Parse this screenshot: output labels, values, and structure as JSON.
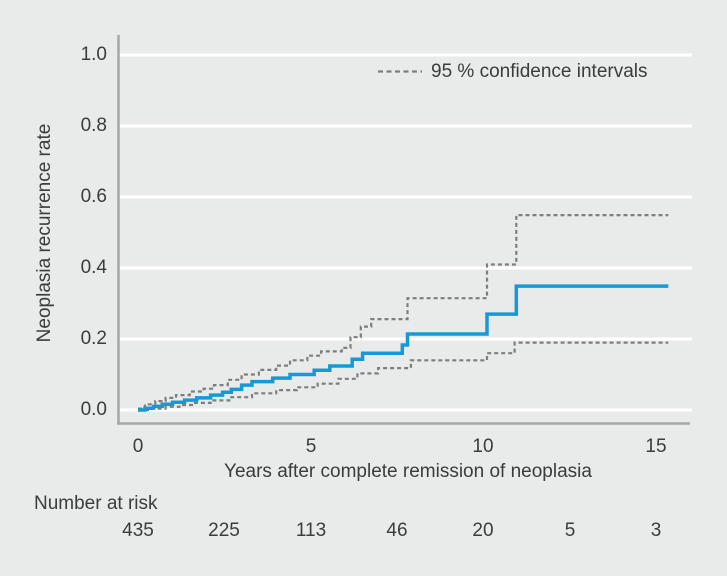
{
  "figure": {
    "background": "#e9eaea",
    "text_color": "#3b3c3d",
    "gridline_color": "#ffffff",
    "axis_color": "#a6a7a7"
  },
  "chart_data": {
    "type": "line",
    "subtype": "step",
    "title": "",
    "xlabel": "Years after complete remission of neoplasia",
    "ylabel": "Neoplasia recurrence rate",
    "xlim": [
      -0.55,
      16.05
    ],
    "ylim": [
      0,
      1.0
    ],
    "grid": "horizontal-white-lines",
    "xtick_labels": [
      "0",
      "5",
      "10",
      "15"
    ],
    "xtick_years": [
      0,
      5,
      10,
      15
    ],
    "ytick_labels": [
      "1.0",
      "0.8",
      "0.6",
      "0.4",
      "0.2",
      "0.0"
    ],
    "ytick_values": [
      1.0,
      0.8,
      0.6,
      0.4,
      0.2,
      0.0
    ],
    "legend": {
      "label": "95 % confidence intervals",
      "position": "top-right",
      "line_style": "dashed",
      "line_color": "#7d7e7e"
    },
    "series": [
      {
        "name": "ci-upper",
        "color": "#7d7e7e",
        "style": "dashed",
        "width": 2.2,
        "end_year": 15.35,
        "steps": [
          [
            0,
            0.004
          ],
          [
            0.2,
            0.016
          ],
          [
            0.5,
            0.025
          ],
          [
            0.8,
            0.034
          ],
          [
            1.1,
            0.042
          ],
          [
            1.5,
            0.052
          ],
          [
            1.9,
            0.06
          ],
          [
            2.2,
            0.07
          ],
          [
            2.6,
            0.085
          ],
          [
            3.0,
            0.1
          ],
          [
            3.5,
            0.113
          ],
          [
            4.0,
            0.125
          ],
          [
            4.4,
            0.14
          ],
          [
            4.9,
            0.153
          ],
          [
            5.3,
            0.165
          ],
          [
            5.9,
            0.175
          ],
          [
            6.15,
            0.205
          ],
          [
            6.45,
            0.235
          ],
          [
            6.75,
            0.256
          ],
          [
            7.8,
            0.315
          ],
          [
            10.1,
            0.41
          ],
          [
            10.95,
            0.549
          ]
        ]
      },
      {
        "name": "ci-lower",
        "color": "#7d7e7e",
        "style": "dashed",
        "width": 2.2,
        "end_year": 15.35,
        "steps": [
          [
            0,
            0.0
          ],
          [
            0.4,
            0.004
          ],
          [
            0.8,
            0.009
          ],
          [
            1.2,
            0.014
          ],
          [
            1.6,
            0.02
          ],
          [
            2.1,
            0.027
          ],
          [
            2.7,
            0.036
          ],
          [
            3.3,
            0.047
          ],
          [
            4.0,
            0.056
          ],
          [
            4.6,
            0.064
          ],
          [
            5.2,
            0.074
          ],
          [
            5.8,
            0.088
          ],
          [
            6.35,
            0.103
          ],
          [
            6.95,
            0.118
          ],
          [
            7.9,
            0.14
          ],
          [
            10.1,
            0.16
          ],
          [
            10.9,
            0.19
          ]
        ]
      },
      {
        "name": "neoplasia-recurrence-rate",
        "color": "#1899d6",
        "style": "solid",
        "width": 3.5,
        "end_year": 15.35,
        "steps": [
          [
            0,
            0.0
          ],
          [
            0.2,
            0.005
          ],
          [
            0.45,
            0.01
          ],
          [
            0.7,
            0.016
          ],
          [
            1.0,
            0.022
          ],
          [
            1.35,
            0.028
          ],
          [
            1.7,
            0.034
          ],
          [
            2.1,
            0.042
          ],
          [
            2.45,
            0.05
          ],
          [
            2.7,
            0.058
          ],
          [
            3.0,
            0.07
          ],
          [
            3.3,
            0.08
          ],
          [
            3.9,
            0.09
          ],
          [
            4.4,
            0.1
          ],
          [
            5.1,
            0.112
          ],
          [
            5.55,
            0.124
          ],
          [
            6.2,
            0.143
          ],
          [
            6.5,
            0.16
          ],
          [
            7.65,
            0.183
          ],
          [
            7.8,
            0.214
          ],
          [
            10.1,
            0.27
          ],
          [
            10.95,
            0.349
          ]
        ]
      }
    ],
    "number_at_risk": {
      "label": "Number at risk",
      "years": [
        0,
        2.5,
        5,
        7.5,
        10,
        12.5,
        15
      ],
      "values": [
        "435",
        "225",
        "113",
        "46",
        "20",
        "5",
        "3"
      ]
    }
  }
}
